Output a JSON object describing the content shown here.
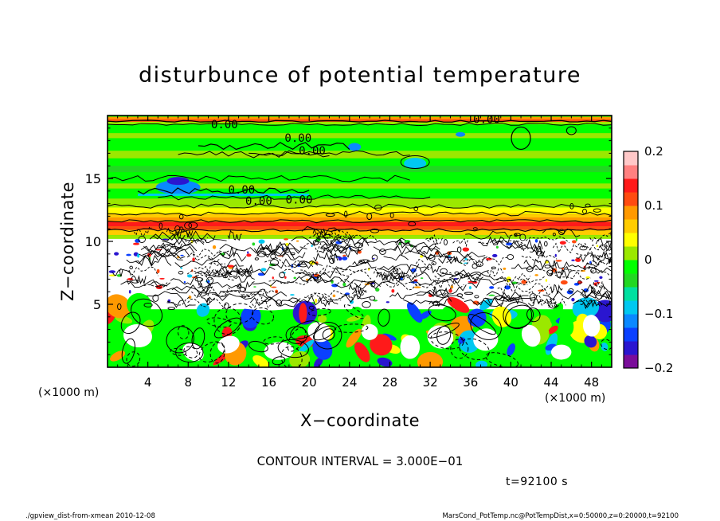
{
  "chart_data": {
    "type": "heatmap",
    "title": "disturbunce of potential temperature",
    "xlabel": "X−coordinate",
    "ylabel": "Z−coordinate",
    "x_unit": "(×1000 m)",
    "z_unit": "(×1000 m)",
    "xlim": [
      0,
      50
    ],
    "ylim": [
      0,
      20
    ],
    "xticks": [
      4,
      8,
      12,
      16,
      20,
      24,
      28,
      32,
      36,
      40,
      44,
      48
    ],
    "xtick_labels": [
      "4",
      "8",
      "12",
      "16",
      "20",
      "24",
      "28",
      "32",
      "36",
      "40",
      "44",
      "48"
    ],
    "yticks": [
      5,
      10,
      15
    ],
    "ytick_labels": [
      "5",
      "10",
      "15"
    ],
    "colorbar": {
      "range": [
        -0.2,
        0.2
      ],
      "ticks": [
        0.2,
        0.1,
        0,
        -0.1,
        -0.2
      ],
      "tick_labels": [
        "0.2",
        "0.1",
        "0",
        "−0.1",
        "−0.2"
      ],
      "colors": [
        "#7a0d9a",
        "#2a16d0",
        "#0a40ff",
        "#0a88ff",
        "#00c8f0",
        "#00e0a0",
        "#22d822",
        "#00ff00",
        "#9be800",
        "#ffff00",
        "#ffcc00",
        "#ff9900",
        "#ff4b10",
        "#ff1a1a",
        "#ff8080",
        "#ffc8c8"
      ]
    },
    "contour_labels": [
      "0.00",
      "0.00",
      "0.00",
      "0.00",
      "0.00",
      "0.00",
      "0.00"
    ],
    "grid": false
  },
  "contour_interval": "CONTOUR INTERVAL = 3.000E−01",
  "time_label": "t=92100 s",
  "footer": {
    "left": "./gpview_dist-from-xmean   2010-12-08",
    "right": "MarsCond_PotTemp.nc@PotTempDist,x=0:50000,z=0:20000,t=92100"
  },
  "colors": {
    "green": "#00ff00",
    "white": "#ffffff",
    "red": "#ff1a1a"
  }
}
